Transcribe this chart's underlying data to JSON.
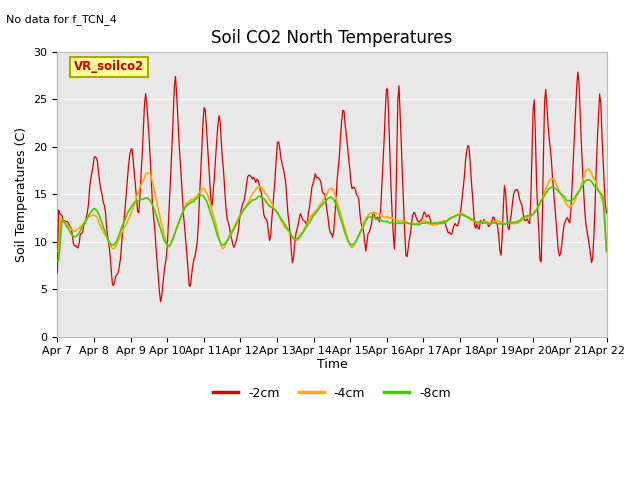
{
  "title": "Soil CO2 North Temperatures",
  "top_left_text": "No data for f_TCN_4",
  "ylabel": "Soil Temperatures (C)",
  "xlabel": "Time",
  "ylim": [
    0,
    30
  ],
  "yticks": [
    0,
    5,
    10,
    15,
    20,
    25,
    30
  ],
  "plot_bg": "#e8e8e8",
  "fig_bg": "#ffffff",
  "grid_color": "#ffffff",
  "legend_box_label": "VR_soilco2",
  "legend_box_bg": "#ffff99",
  "legend_box_edge": "#aaaa00",
  "red_color": "#dd0000",
  "orange_color": "#ffaa00",
  "green_color": "#44cc00",
  "xtick_labels": [
    "Apr 7",
    "Apr 8",
    "Apr 9",
    "Apr 10",
    "Apr 11",
    "Apr 12",
    "Apr 13",
    "Apr 14",
    "Apr 15",
    "Apr 16",
    "Apr 17",
    "Apr 18",
    "Apr 19",
    "Apr 20",
    "Apr 21",
    "Apr 22"
  ],
  "title_fontsize": 12,
  "axis_label_fontsize": 9,
  "tick_fontsize": 8
}
